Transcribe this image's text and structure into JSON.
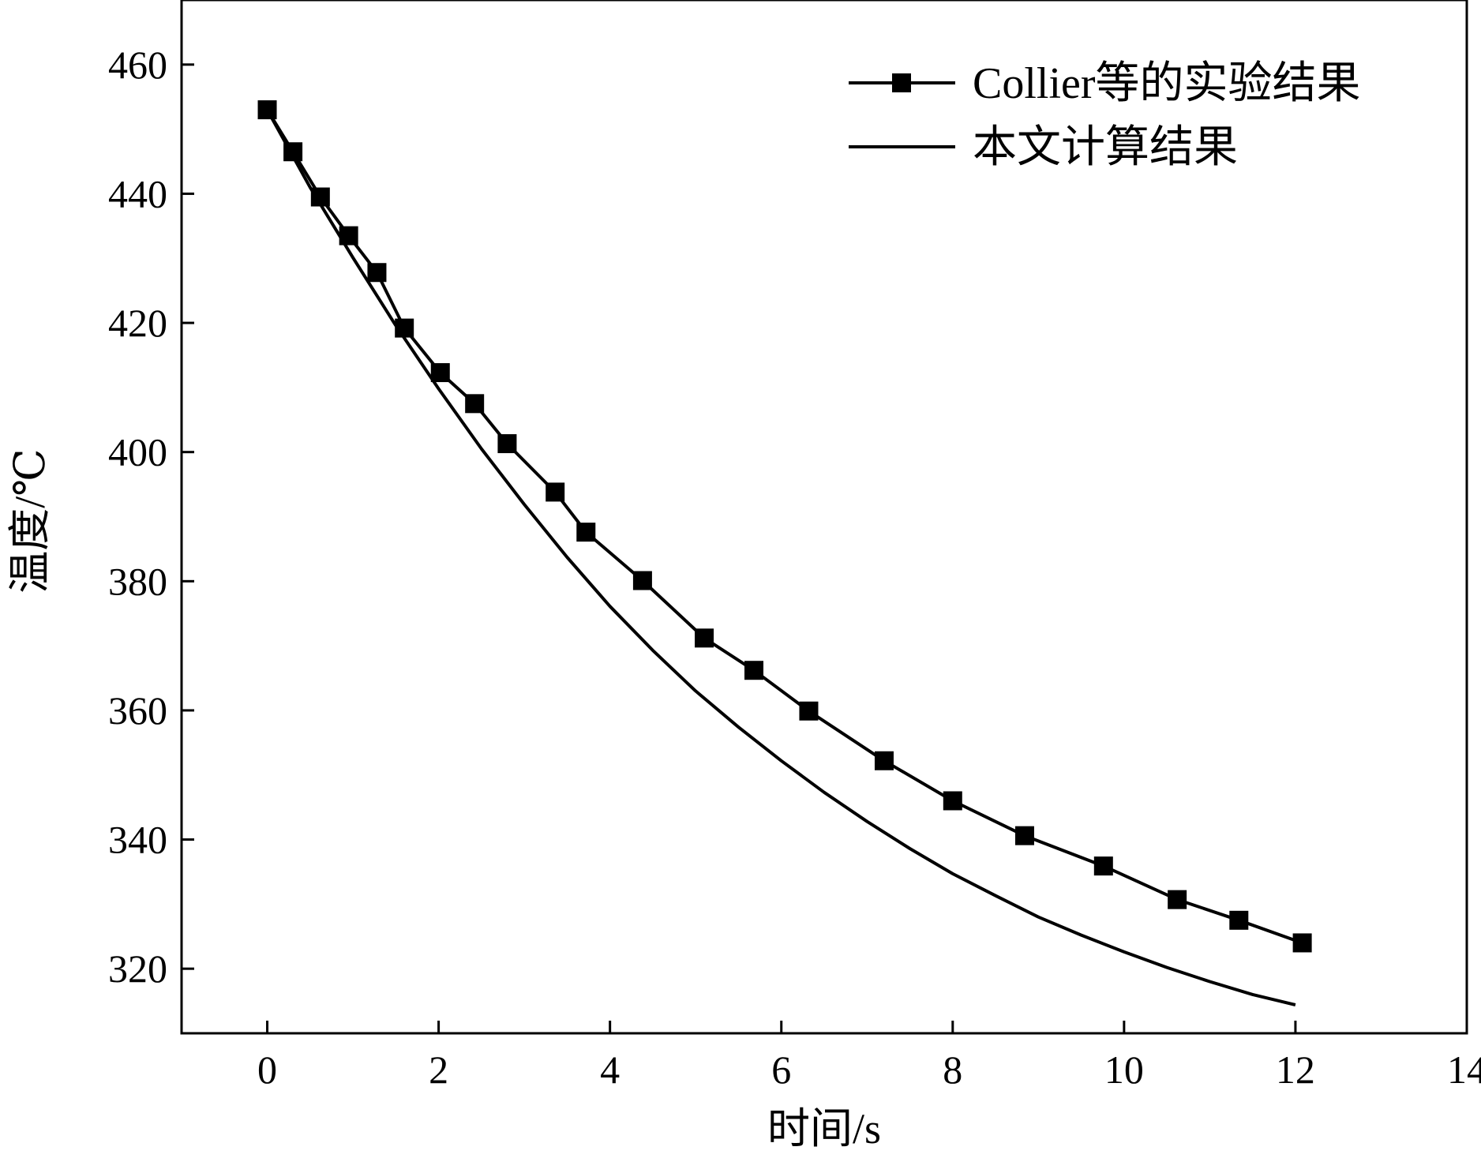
{
  "chart_data": {
    "type": "line",
    "title": "",
    "xlabel": "时间/s",
    "ylabel": "温度/℃",
    "xlim": [
      -1,
      14
    ],
    "ylim": [
      310,
      470
    ],
    "xticks": [
      0,
      2,
      4,
      6,
      8,
      10,
      12,
      14
    ],
    "yticks": [
      320,
      340,
      360,
      380,
      400,
      420,
      440,
      460
    ],
    "grid": false,
    "legend_position": "top-right",
    "series": [
      {
        "name": "Collier等的实验结果",
        "marker": "square",
        "color": "#000000",
        "x": [
          0,
          0.3,
          0.62,
          0.95,
          1.28,
          1.6,
          2.02,
          2.42,
          2.8,
          3.36,
          3.72,
          4.38,
          5.1,
          5.68,
          6.32,
          7.2,
          8.0,
          8.84,
          9.76,
          10.62,
          11.34,
          12.08
        ],
        "y": [
          453,
          446.5,
          439.5,
          433.5,
          427.8,
          419.2,
          412.3,
          407.5,
          401.3,
          393.8,
          387.6,
          380.1,
          371.2,
          366.2,
          359.9,
          352.2,
          346.0,
          340.6,
          335.9,
          330.7,
          327.5,
          324.0
        ]
      },
      {
        "name": "本文计算结果",
        "marker": "none",
        "color": "#000000",
        "x": [
          0,
          0.5,
          1,
          1.5,
          2,
          2.5,
          3,
          3.5,
          4,
          4.5,
          5,
          5.5,
          6,
          6.5,
          7,
          7.5,
          8,
          8.5,
          9,
          9.5,
          10,
          10.5,
          11,
          11.5,
          12
        ],
        "y": [
          453,
          441.0,
          430.1,
          419.6,
          409.8,
          400.5,
          391.9,
          383.7,
          376.1,
          369.3,
          363.0,
          357.4,
          352.2,
          347.3,
          342.8,
          338.6,
          334.7,
          331.3,
          328.0,
          325.2,
          322.6,
          320.2,
          318.0,
          316.0,
          314.4
        ]
      }
    ]
  }
}
